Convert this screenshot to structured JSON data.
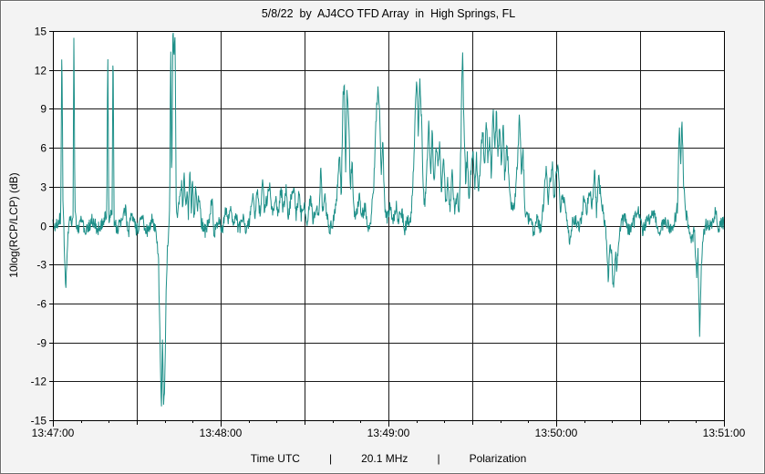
{
  "window": {
    "title": "5/8/22  by  AJ4CO TFD Array  in  High Springs, FL"
  },
  "footer": {
    "items": [
      "Time UTC",
      "|",
      "20.1 MHz",
      "|",
      "Polarization"
    ]
  },
  "chart_data": {
    "type": "line",
    "title": "5/8/22  by  AJ4CO TFD Array  in  High Springs, FL",
    "xlabel": "Time UTC",
    "ylabel": "10log(RCP/LCP) (dB)",
    "x_start_label": "13:47:00",
    "x_end_label": "13:51:00",
    "x_tick_labels": [
      "13:47:00",
      "13:48:00",
      "13:49:00",
      "13:50:00",
      "13:51:00"
    ],
    "x_span_seconds": 240,
    "x_major_tick_seconds": 60,
    "x_grid_seconds": 30,
    "x_minor_tick_seconds": 10,
    "ylim": [
      -15,
      15
    ],
    "y_tick_step": 3,
    "y_tick_labels": [
      15,
      12,
      9,
      6,
      3,
      0,
      -3,
      -6,
      -9,
      -12,
      -15
    ],
    "grid": true,
    "grid_color": "#1a1a1a",
    "line_color": "#1d8f88",
    "plot_bg": "#ffffff",
    "noise": {
      "amplitude": 0.55,
      "seed": 20
    },
    "legend": "none",
    "series": [
      {
        "name": "10log(RCP/LCP)",
        "points": [
          [
            0,
            0.2
          ],
          [
            1,
            -0.2
          ],
          [
            2,
            0.4
          ],
          [
            2.8,
            0.5
          ],
          [
            3.2,
            14.8
          ],
          [
            3.6,
            1.5
          ],
          [
            4.6,
            -4.8
          ],
          [
            5.2,
            -1.2
          ],
          [
            6,
            0.3
          ],
          [
            7.2,
            0.6
          ],
          [
            7.5,
            15
          ],
          [
            7.9,
            1
          ],
          [
            8.5,
            -0.4
          ],
          [
            10,
            0.3
          ],
          [
            12,
            -0.5
          ],
          [
            14,
            0.4
          ],
          [
            16,
            -0.3
          ],
          [
            18,
            0.4
          ],
          [
            19.3,
            0.8
          ],
          [
            19.6,
            15
          ],
          [
            20,
            0.6
          ],
          [
            21.2,
            0.8
          ],
          [
            21.5,
            15
          ],
          [
            21.9,
            0.4
          ],
          [
            23,
            -0.3
          ],
          [
            25,
            0.5
          ],
          [
            26,
            1.2
          ],
          [
            27,
            -0.6
          ],
          [
            28,
            0.8
          ],
          [
            30,
            -0.4
          ],
          [
            32,
            0.5
          ],
          [
            34,
            -0.6
          ],
          [
            35.5,
            0.6
          ],
          [
            37,
            -0.5
          ],
          [
            37.8,
            -3
          ],
          [
            38.3,
            -9
          ],
          [
            38.8,
            -14.8
          ],
          [
            39.2,
            -8
          ],
          [
            39.6,
            -14.2
          ],
          [
            40,
            -12.5
          ],
          [
            40.5,
            -5
          ],
          [
            41,
            -1.5
          ],
          [
            41.8,
            1
          ],
          [
            42.1,
            15
          ],
          [
            42.5,
            2.5
          ],
          [
            42.9,
            15
          ],
          [
            43.3,
            13.5
          ],
          [
            43.7,
            15
          ],
          [
            44.1,
            2
          ],
          [
            44.6,
            0.5
          ],
          [
            46,
            3.4
          ],
          [
            46.4,
            0.8
          ],
          [
            47,
            4.4
          ],
          [
            47.5,
            1
          ],
          [
            48,
            3.1
          ],
          [
            48.5,
            0.6
          ],
          [
            49,
            4.3
          ],
          [
            49.5,
            1.2
          ],
          [
            50,
            3.7
          ],
          [
            50.5,
            0.5
          ],
          [
            51,
            2.7
          ],
          [
            51.6,
            1.4
          ],
          [
            52.4,
            2.2
          ],
          [
            53,
            0.4
          ],
          [
            54.5,
            -0.5
          ],
          [
            56,
            0.6
          ],
          [
            57,
            2.1
          ],
          [
            57.6,
            -0.6
          ],
          [
            59,
            0.4
          ],
          [
            60.5,
            -0.5
          ],
          [
            62,
            1.4
          ],
          [
            62.6,
            0.3
          ],
          [
            63.6,
            1.6
          ],
          [
            64.3,
            0.2
          ],
          [
            65.5,
            1.1
          ],
          [
            66.4,
            -0.4
          ],
          [
            68,
            0.5
          ],
          [
            69,
            -0.6
          ],
          [
            70.5,
            0.8
          ],
          [
            71.5,
            2.2
          ],
          [
            72.2,
            0.5
          ],
          [
            73.2,
            2.8
          ],
          [
            74,
            0.9
          ],
          [
            75,
            3.2
          ],
          [
            75.7,
            1.1
          ],
          [
            76.6,
            2
          ],
          [
            77.6,
            3.5
          ],
          [
            78.4,
            0.9
          ],
          [
            79.6,
            2.3
          ],
          [
            80.4,
            0.7
          ],
          [
            81.6,
            2.9
          ],
          [
            82.4,
            1.1
          ],
          [
            83.4,
            3.1
          ],
          [
            84.2,
            0.6
          ],
          [
            85.2,
            2.2
          ],
          [
            86.2,
            3
          ],
          [
            87,
            0.9
          ],
          [
            88,
            2.5
          ],
          [
            88.8,
            0.7
          ],
          [
            90,
            1.6
          ],
          [
            91,
            0.4
          ],
          [
            92,
            2.1
          ],
          [
            93,
            0.6
          ],
          [
            94.2,
            1.4
          ],
          [
            95,
            0.5
          ],
          [
            95.8,
            4.2
          ],
          [
            96.4,
            0.9
          ],
          [
            97.2,
            2.4
          ],
          [
            98,
            0.7
          ],
          [
            99,
            -0.4
          ],
          [
            100.5,
            0.5
          ],
          [
            101.8,
            2.8
          ],
          [
            102.6,
            5.8
          ],
          [
            103.1,
            1.8
          ],
          [
            103.7,
            9.4
          ],
          [
            104.2,
            11.4
          ],
          [
            104.7,
            3.8
          ],
          [
            105.2,
            10.6
          ],
          [
            105.8,
            8
          ],
          [
            106.4,
            2.8
          ],
          [
            107,
            5.4
          ],
          [
            107.6,
            1.4
          ],
          [
            108.4,
            0.5
          ],
          [
            109.6,
            2.4
          ],
          [
            110.4,
            0.7
          ],
          [
            111.6,
            1.5
          ],
          [
            112.6,
            -0.4
          ],
          [
            113.8,
            0.6
          ],
          [
            114.8,
            3.4
          ],
          [
            115.6,
            8.4
          ],
          [
            116.2,
            10.3
          ],
          [
            116.8,
            9.6
          ],
          [
            117.4,
            3.8
          ],
          [
            118,
            6.4
          ],
          [
            118.7,
            1.6
          ],
          [
            119.4,
            0.5
          ],
          [
            120.6,
            1.4
          ],
          [
            121.6,
            0.3
          ],
          [
            122.8,
            1.7
          ],
          [
            123.6,
            0.3
          ],
          [
            124.8,
            1.2
          ],
          [
            125.8,
            -0.4
          ],
          [
            127,
            0.6
          ],
          [
            128,
            0.3
          ],
          [
            128.9,
            3.8
          ],
          [
            129.6,
            8.8
          ],
          [
            130.1,
            11.5
          ],
          [
            130.7,
            6.8
          ],
          [
            131.2,
            11.2
          ],
          [
            131.8,
            8.6
          ],
          [
            132.4,
            2.8
          ],
          [
            133,
            1.4
          ],
          [
            133.8,
            4.8
          ],
          [
            134.5,
            8.2
          ],
          [
            135.1,
            3.8
          ],
          [
            135.7,
            7.6
          ],
          [
            136.3,
            2.8
          ],
          [
            137,
            6.6
          ],
          [
            137.7,
            4.4
          ],
          [
            138.3,
            6.8
          ],
          [
            139,
            2.4
          ],
          [
            139.8,
            5.2
          ],
          [
            140.5,
            1.4
          ],
          [
            141.2,
            3.4
          ],
          [
            142,
            0.9
          ],
          [
            142.8,
            4.3
          ],
          [
            143.6,
            1.1
          ],
          [
            144.6,
            2.4
          ],
          [
            145.3,
            1
          ],
          [
            145.9,
            5.8
          ],
          [
            146.5,
            14.2
          ],
          [
            147,
            7.8
          ],
          [
            147.6,
            3.4
          ],
          [
            148.2,
            5.4
          ],
          [
            148.8,
            2.1
          ],
          [
            149.6,
            4.4
          ],
          [
            150.3,
            6.2
          ],
          [
            150.9,
            2.9
          ],
          [
            151.5,
            5.4
          ],
          [
            152.2,
            2.4
          ],
          [
            153,
            5.4
          ],
          [
            153.8,
            7.4
          ],
          [
            154.4,
            4.4
          ],
          [
            155,
            8.6
          ],
          [
            155.6,
            4.9
          ],
          [
            156.2,
            6.8
          ],
          [
            156.8,
            3.9
          ],
          [
            157.4,
            9.4
          ],
          [
            158,
            5.9
          ],
          [
            158.6,
            8.8
          ],
          [
            159.2,
            5.4
          ],
          [
            159.8,
            7.8
          ],
          [
            160.4,
            3.9
          ],
          [
            161,
            8.2
          ],
          [
            161.6,
            3.4
          ],
          [
            162.3,
            6.4
          ],
          [
            163,
            4.1
          ],
          [
            163.8,
            1.9
          ],
          [
            164.6,
            1.1
          ],
          [
            165.4,
            2.4
          ],
          [
            166.2,
            5.4
          ],
          [
            166.9,
            8.7
          ],
          [
            167.5,
            3.9
          ],
          [
            168.1,
            6.2
          ],
          [
            168.8,
            1.4
          ],
          [
            169.6,
            0.7
          ],
          [
            171,
            0.4
          ],
          [
            172,
            -0.8
          ],
          [
            173.2,
            0.5
          ],
          [
            174.4,
            -0.4
          ],
          [
            175.6,
            2.1
          ],
          [
            176.5,
            4.6
          ],
          [
            177.1,
            1.4
          ],
          [
            177.8,
            3.4
          ],
          [
            178.6,
            4.8
          ],
          [
            179.3,
            1.9
          ],
          [
            180,
            3.8
          ],
          [
            180.8,
            4.4
          ],
          [
            181.5,
            1
          ],
          [
            182.3,
            2.6
          ],
          [
            183.2,
            1.1
          ],
          [
            184,
            0.4
          ],
          [
            184.8,
            -1.5
          ],
          [
            185.6,
            0.2
          ],
          [
            186.8,
            0.6
          ],
          [
            188,
            -0.3
          ],
          [
            189,
            0.5
          ],
          [
            190,
            2.4
          ],
          [
            190.8,
            0.9
          ],
          [
            191.8,
            3.1
          ],
          [
            192.8,
            1.4
          ],
          [
            193.8,
            4.4
          ],
          [
            194.4,
            0.9
          ],
          [
            195.2,
            3.6
          ],
          [
            196.2,
            1.9
          ],
          [
            197,
            0.7
          ],
          [
            197.8,
            -0.5
          ],
          [
            198.6,
            -4.3
          ],
          [
            199.2,
            -1
          ],
          [
            199.9,
            -2.4
          ],
          [
            200.5,
            -5.4
          ],
          [
            201.1,
            -1.9
          ],
          [
            201.7,
            -3.4
          ],
          [
            202.4,
            -0.8
          ],
          [
            203.2,
            0.2
          ],
          [
            204.5,
            0.5
          ],
          [
            206,
            -0.3
          ],
          [
            208,
            0.4
          ],
          [
            209.5,
            1
          ],
          [
            211,
            -0.4
          ],
          [
            213,
            0.5
          ],
          [
            215,
            0.8
          ],
          [
            217,
            -0.3
          ],
          [
            219,
            0.4
          ],
          [
            221,
            -0.4
          ],
          [
            222.5,
            0.6
          ],
          [
            223.4,
            1.4
          ],
          [
            224,
            7.8
          ],
          [
            224.5,
            4.9
          ],
          [
            225,
            8.1
          ],
          [
            225.6,
            2.9
          ],
          [
            226.3,
            1.1
          ],
          [
            227.5,
            -0.4
          ],
          [
            228.5,
            -1
          ],
          [
            229.5,
            -0.4
          ],
          [
            230.2,
            -4
          ],
          [
            230.7,
            -1.9
          ],
          [
            231.3,
            -8.9
          ],
          [
            231.9,
            -2.9
          ],
          [
            232.6,
            -1
          ],
          [
            233.4,
            0.3
          ],
          [
            234.6,
            -0.3
          ],
          [
            236,
            0.5
          ],
          [
            237,
            1.1
          ],
          [
            238,
            -0.4
          ],
          [
            239,
            0.4
          ],
          [
            240,
            0.2
          ]
        ]
      }
    ]
  }
}
